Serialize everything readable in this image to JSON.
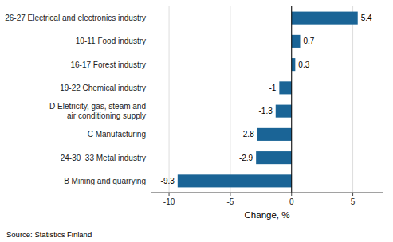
{
  "chart_data": {
    "type": "bar",
    "orientation": "horizontal",
    "categories": [
      "B Mining and quarrying",
      "24-30_33 Metal industry",
      "C Manufacturing",
      "D Eletricity, gas, steam and\nair conditioning supply",
      "19-22 Chemical industry",
      "16-17 Forest industry",
      "10-11 Food industry",
      "26-27 Electrical and electronics industry"
    ],
    "values": [
      -9.3,
      -2.9,
      -2.8,
      -1.3,
      -1.0,
      0.3,
      0.7,
      5.4
    ],
    "color": "#1a6496",
    "xlim": [
      -11.5,
      7.5
    ],
    "xticks": [
      -10,
      -5,
      0,
      5
    ],
    "x_label": "Change, %",
    "annotations": [
      "Source: Statistics Finland"
    ],
    "grid": true,
    "data_labels": true
  }
}
